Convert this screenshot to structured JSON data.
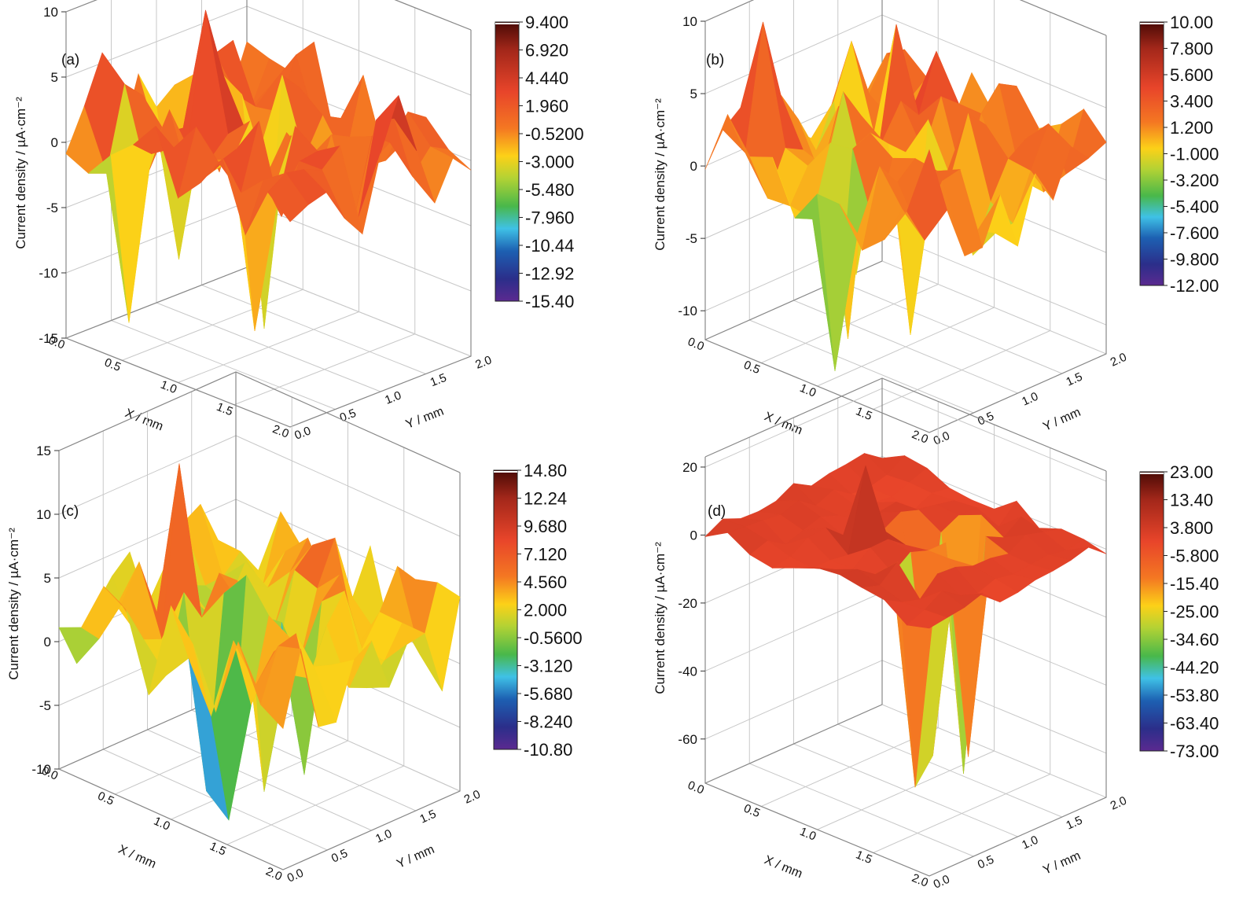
{
  "chart_data": [
    {
      "type": "surface3d",
      "panel_label": "(a)",
      "zlabel": "Current density / µA·cm⁻²",
      "xlabel": "X / mm",
      "ylabel": "Y / mm",
      "x_ticks": [
        "0.0",
        "0.5",
        "1.0",
        "1.5",
        "2.0"
      ],
      "y_ticks": [
        "0.0",
        "0.5",
        "1.0",
        "1.5",
        "2.0"
      ],
      "z_ticks": [
        "-15",
        "-10",
        "-5",
        "0",
        "5",
        "10"
      ],
      "zlim": [
        -15,
        10
      ],
      "colorbar_ticks": [
        "9.400",
        "6.920",
        "4.440",
        "1.960",
        "-0.5200",
        "-3.000",
        "-5.480",
        "-7.960",
        "-10.44",
        "-12.92",
        "-15.40"
      ],
      "colorbar_range": [
        -15.4,
        9.4
      ],
      "grid": true,
      "seed": 11,
      "surface_stats": {
        "mean": 1.0,
        "amplitude": 3.6,
        "spikes_down": [
          [
            2,
            1,
            -13
          ],
          [
            6,
            3,
            -12
          ],
          [
            1,
            5,
            -11
          ],
          [
            4,
            6,
            -14.8
          ]
        ],
        "spikes_up": [
          [
            3,
            4,
            10
          ]
        ]
      }
    },
    {
      "type": "surface3d",
      "panel_label": "(b)",
      "zlabel": "Current density / µA·cm⁻²",
      "xlabel": "X / mm",
      "ylabel": "Y / mm",
      "x_ticks": [
        "0.0",
        "0.5",
        "1.0",
        "1.5",
        "2.0"
      ],
      "y_ticks": [
        "0.0",
        "0.5",
        "1.0",
        "1.5",
        "2.0"
      ],
      "z_ticks": [
        "-10",
        "-5",
        "0",
        "5",
        "10"
      ],
      "zlim": [
        -12,
        10
      ],
      "colorbar_ticks": [
        "10.00",
        "7.800",
        "5.600",
        "3.400",
        "1.200",
        "-1.000",
        "-3.200",
        "-5.400",
        "-7.600",
        "-9.800",
        "-12.00"
      ],
      "colorbar_range": [
        -12,
        10
      ],
      "grid": true,
      "seed": 23,
      "surface_stats": {
        "mean": 1.5,
        "amplitude": 3.4,
        "spikes_down": [
          [
            5,
            1,
            -11.5
          ],
          [
            6,
            4,
            -10
          ],
          [
            2,
            6,
            -9.5
          ],
          [
            4,
            3,
            -11
          ]
        ],
        "spikes_up": [
          [
            1,
            2,
            9.5
          ]
        ]
      }
    },
    {
      "type": "surface3d",
      "panel_label": "(c)",
      "zlabel": "Current density / µA·cm⁻²",
      "xlabel": "X / mm",
      "ylabel": "Y / mm",
      "x_ticks": [
        "0.0",
        "0.5",
        "1.0",
        "1.5",
        "2.0"
      ],
      "y_ticks": [
        "0.0",
        "0.5",
        "1.0",
        "1.5",
        "2.0"
      ],
      "z_ticks": [
        "-10",
        "-5",
        "0",
        "5",
        "10",
        "15"
      ],
      "zlim": [
        -10,
        15
      ],
      "colorbar_ticks": [
        "14.80",
        "12.24",
        "9.680",
        "7.120",
        "4.560",
        "2.000",
        "-0.5600",
        "-3.120",
        "-5.680",
        "-8.240",
        "-10.80"
      ],
      "colorbar_range": [
        -10.8,
        14.8
      ],
      "grid": true,
      "seed": 37,
      "surface_stats": {
        "mean": 3.0,
        "amplitude": 3.8,
        "spikes_down": [
          [
            5,
            2,
            -9
          ],
          [
            6,
            2,
            -10.5
          ],
          [
            6,
            4,
            -9.5
          ],
          [
            7,
            5,
            -8
          ]
        ],
        "spikes_up": [
          [
            3,
            3,
            14.5
          ]
        ]
      }
    },
    {
      "type": "surface3d",
      "panel_label": "(d)",
      "zlabel": "Current density / µA·cm⁻²",
      "xlabel": "X / mm",
      "ylabel": "Y / mm",
      "x_ticks": [
        "0.0",
        "0.5",
        "1.0",
        "1.5",
        "2.0"
      ],
      "y_ticks": [
        "0.0",
        "0.5",
        "1.0",
        "1.5",
        "2.0"
      ],
      "z_ticks": [
        "-60",
        "-40",
        "-20",
        "0",
        "20"
      ],
      "zlim": [
        -73,
        23
      ],
      "colorbar_ticks": [
        "23.00",
        "13.40",
        "3.800",
        "-5.800",
        "-15.40",
        "-25.00",
        "-34.60",
        "-44.20",
        "-53.80",
        "-63.40",
        "-73.00"
      ],
      "colorbar_range": [
        -73,
        23
      ],
      "grid": true,
      "seed": 51,
      "surface_stats": {
        "mean": 1.0,
        "amplitude": 3.0,
        "spikes_down": [
          [
            7,
            3,
            -62
          ],
          [
            7,
            4,
            -55
          ],
          [
            7,
            6,
            -60
          ],
          [
            6,
            7,
            -70
          ],
          [
            5,
            6,
            -45
          ]
        ],
        "spikes_up": [
          [
            4,
            4,
            22
          ]
        ]
      }
    }
  ]
}
